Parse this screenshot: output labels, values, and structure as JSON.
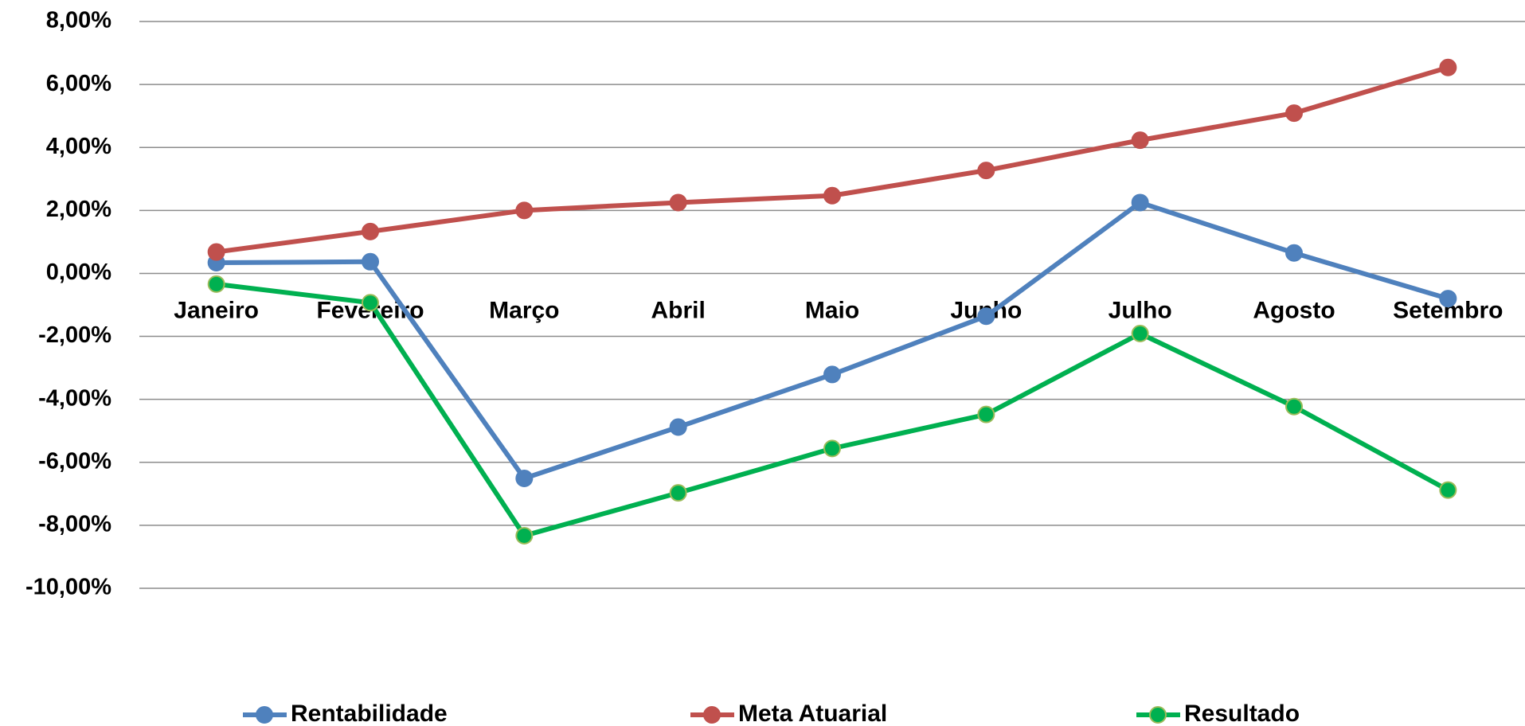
{
  "chart_data": {
    "type": "line",
    "categories": [
      "Janeiro",
      "Fevereiro",
      "Março",
      "Abril",
      "Maio",
      "Junho",
      "Julho",
      "Agosto",
      "Setembro"
    ],
    "series": [
      {
        "name": "Rentabilidade",
        "color": "#4f81bd",
        "values": [
          0.34,
          0.37,
          -6.51,
          -4.88,
          -3.21,
          -1.36,
          2.25,
          0.65,
          -0.8
        ]
      },
      {
        "name": "Meta Atuarial",
        "color": "#c0504d",
        "values": [
          0.68,
          1.33,
          2.0,
          2.25,
          2.47,
          3.27,
          4.23,
          5.09,
          6.54
        ]
      },
      {
        "name": "Resultado",
        "color": "#00b050",
        "values": [
          -0.34,
          -0.93,
          -8.33,
          -6.97,
          -5.56,
          -4.48,
          -1.91,
          -4.23,
          -6.88
        ]
      }
    ],
    "ylim": [
      -10,
      8
    ],
    "yticks": [
      {
        "value": -10,
        "label": "-10,00%"
      },
      {
        "value": -8,
        "label": "-8,00%"
      },
      {
        "value": -6,
        "label": "-6,00%"
      },
      {
        "value": -4,
        "label": "-4,00%"
      },
      {
        "value": -2,
        "label": "-2,00%"
      },
      {
        "value": 0,
        "label": "0,00%"
      },
      {
        "value": 2,
        "label": "2,00%"
      },
      {
        "value": 4,
        "label": "4,00%"
      },
      {
        "value": 6,
        "label": "6,00%"
      },
      {
        "value": 8,
        "label": "8,00%"
      }
    ],
    "grid": true,
    "legend": "bottom"
  }
}
